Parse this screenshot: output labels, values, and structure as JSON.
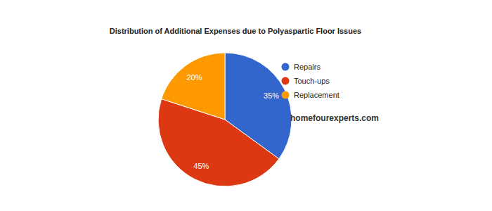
{
  "chart_data": {
    "type": "pie",
    "title": "Distribution of Additional Expenses due to Polyaspartic Floor Issues",
    "categories": [
      "Repairs",
      "Touch-ups",
      "Replacement"
    ],
    "values": [
      35,
      45,
      20
    ],
    "value_labels": [
      "35%",
      "45%",
      "20%"
    ],
    "colors": [
      "#3366cc",
      "#dc3912",
      "#ff9900"
    ],
    "data_labels": true,
    "legend": "right",
    "annotations": [
      "homefourexperts.com"
    ]
  }
}
